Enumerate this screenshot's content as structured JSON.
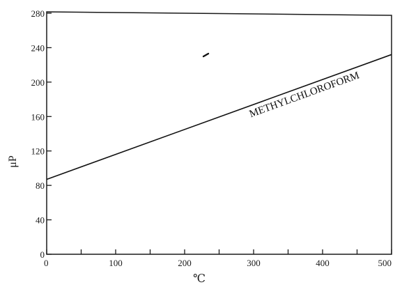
{
  "chart_data": {
    "type": "line",
    "title": "",
    "xlabel": "℃",
    "ylabel": "μP",
    "xlim": [
      0,
      500
    ],
    "ylim": [
      0,
      280
    ],
    "x_ticks": [
      0,
      100,
      200,
      300,
      400,
      500
    ],
    "y_ticks": [
      0,
      40,
      80,
      120,
      160,
      200,
      240,
      280
    ],
    "grid": false,
    "legend": "none",
    "series": [
      {
        "name": "METHYLCHLOROFORM",
        "x": [
          0,
          500
        ],
        "y": [
          87,
          232
        ]
      }
    ],
    "annotations": [
      {
        "text": "METHYLCHLOROFORM",
        "x": 375,
        "y": 182
      }
    ]
  }
}
